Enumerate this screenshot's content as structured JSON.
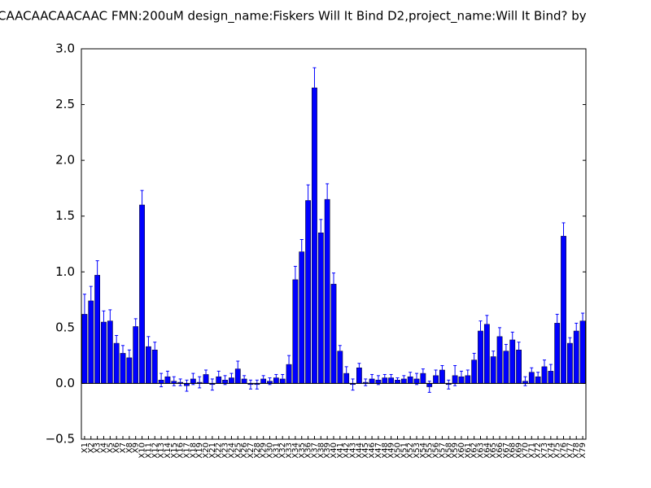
{
  "chart_data": {
    "type": "bar",
    "title": "CAACAACAACAAC  FMN:200uM  design_name:Fiskers Will It Bind D2,project_name:Will It Bind? by",
    "categories": [
      "X1",
      "X2",
      "X3",
      "X4",
      "X5",
      "X6",
      "X7",
      "X8",
      "X9",
      "X10",
      "X11",
      "X12",
      "X13",
      "X14",
      "X15",
      "X16",
      "X17",
      "X18",
      "X19",
      "X20",
      "X21",
      "X22",
      "X23",
      "X24",
      "X25",
      "X26",
      "X27",
      "X28",
      "X29",
      "X30",
      "X31",
      "X32",
      "X33",
      "X34",
      "X35",
      "X36",
      "X37",
      "X38",
      "X39",
      "X40",
      "X41",
      "X42",
      "X43",
      "X44",
      "X45",
      "X46",
      "X47",
      "X48",
      "X49",
      "X50",
      "X51",
      "X52",
      "X53",
      "X54",
      "X55",
      "X56",
      "X57",
      "X58",
      "X59",
      "X60",
      "X61",
      "X62",
      "X63",
      "X64",
      "X65",
      "X66",
      "X67",
      "X68",
      "X69",
      "X70",
      "X71",
      "X72",
      "X73",
      "X74",
      "X75",
      "X76",
      "X77",
      "X78",
      "X79"
    ],
    "values": [
      0.62,
      0.74,
      0.97,
      0.55,
      0.56,
      0.36,
      0.27,
      0.23,
      0.51,
      1.6,
      0.33,
      0.3,
      0.03,
      0.06,
      0.02,
      0.01,
      -0.02,
      0.04,
      0.01,
      0.08,
      -0.01,
      0.06,
      0.03,
      0.05,
      0.13,
      0.04,
      -0.01,
      -0.01,
      0.04,
      0.02,
      0.05,
      0.04,
      0.17,
      0.93,
      1.18,
      1.64,
      2.65,
      1.35,
      1.65,
      0.89,
      0.29,
      0.09,
      -0.01,
      0.14,
      0.01,
      0.04,
      0.03,
      0.05,
      0.05,
      0.03,
      0.04,
      0.06,
      0.04,
      0.09,
      -0.03,
      0.07,
      0.12,
      -0.01,
      0.07,
      0.06,
      0.07,
      0.21,
      0.47,
      0.53,
      0.24,
      0.42,
      0.29,
      0.39,
      0.3,
      0.02,
      0.1,
      0.06,
      0.15,
      0.11,
      0.54,
      1.32,
      0.36,
      0.47,
      0.56
    ],
    "errors": [
      0.18,
      0.13,
      0.13,
      0.1,
      0.1,
      0.07,
      0.07,
      0.07,
      0.07,
      0.13,
      0.09,
      0.07,
      0.06,
      0.05,
      0.04,
      0.03,
      0.05,
      0.05,
      0.05,
      0.04,
      0.05,
      0.05,
      0.04,
      0.04,
      0.07,
      0.03,
      0.04,
      0.04,
      0.03,
      0.03,
      0.03,
      0.04,
      0.08,
      0.12,
      0.11,
      0.14,
      0.18,
      0.12,
      0.14,
      0.1,
      0.05,
      0.06,
      0.05,
      0.04,
      0.03,
      0.04,
      0.04,
      0.03,
      0.03,
      0.02,
      0.03,
      0.04,
      0.05,
      0.04,
      0.05,
      0.05,
      0.04,
      0.04,
      0.09,
      0.05,
      0.05,
      0.06,
      0.09,
      0.08,
      0.05,
      0.08,
      0.06,
      0.07,
      0.07,
      0.04,
      0.04,
      0.04,
      0.06,
      0.06,
      0.08,
      0.12,
      0.05,
      0.07,
      0.07
    ],
    "color": "#0000ff",
    "ylim": [
      -0.5,
      3.0
    ],
    "yticks": [
      {
        "value": -0.5,
        "label": "−0.5"
      },
      {
        "value": 0,
        "label": "0.0"
      },
      0.5,
      {
        "value": 1,
        "label": "1.0"
      },
      1.5,
      {
        "value": 2,
        "label": "2.0"
      },
      2.5,
      {
        "value": 3,
        "label": "3.0"
      }
    ]
  }
}
